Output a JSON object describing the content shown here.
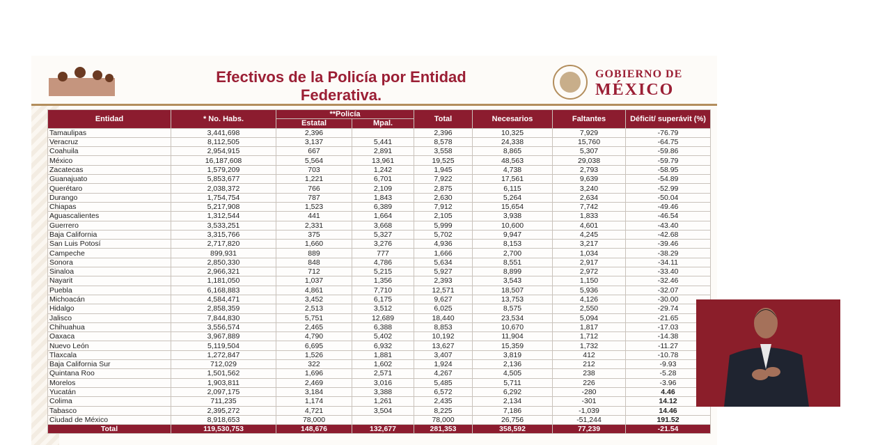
{
  "header": {
    "title": "Efectivos de la Policía por Entidad Federativa.",
    "logo": [
      "GOBIERNO DE",
      "MÉXICO"
    ]
  },
  "table": {
    "columns": [
      "Entidad",
      "* No. Habs.",
      "**Policía",
      "Total",
      "Necesarios",
      "Faltantes",
      "Déficit/ superávit (%)"
    ],
    "subcolumns": [
      "Estatal",
      "Mpal."
    ],
    "rows": [
      [
        "Tamaulipas",
        "3,441,698",
        "2,396",
        null,
        "2,396",
        "10,325",
        "7,929",
        "-76.79"
      ],
      [
        "Veracruz",
        "8,112,505",
        "3,137",
        "5,441",
        "8,578",
        "24,338",
        "15,760",
        "-64.75"
      ],
      [
        "Coahuila",
        "2,954,915",
        "667",
        "2,891",
        "3,558",
        "8,865",
        "5,307",
        "-59.86"
      ],
      [
        "México",
        "16,187,608",
        "5,564",
        "13,961",
        "19,525",
        "48,563",
        "29,038",
        "-59.79"
      ],
      [
        "Zacatecas",
        "1,579,209",
        "703",
        "1,242",
        "1,945",
        "4,738",
        "2,793",
        "-58.95"
      ],
      [
        "Guanajuato",
        "5,853,677",
        "1,221",
        "6,701",
        "7,922",
        "17,561",
        "9,639",
        "-54.89"
      ],
      [
        "Querétaro",
        "2,038,372",
        "766",
        "2,109",
        "2,875",
        "6,115",
        "3,240",
        "-52.99"
      ],
      [
        "Durango",
        "1,754,754",
        "787",
        "1,843",
        "2,630",
        "5,264",
        "2,634",
        "-50.04"
      ],
      [
        "Chiapas",
        "5,217,908",
        "1,523",
        "6,389",
        "7,912",
        "15,654",
        "7,742",
        "-49.46"
      ],
      [
        "Aguascalientes",
        "1,312,544",
        "441",
        "1,664",
        "2,105",
        "3,938",
        "1,833",
        "-46.54"
      ],
      [
        "Guerrero",
        "3,533,251",
        "2,331",
        "3,668",
        "5,999",
        "10,600",
        "4,601",
        "-43.40"
      ],
      [
        "Baja California",
        "3,315,766",
        "375",
        "5,327",
        "5,702",
        "9,947",
        "4,245",
        "-42.68"
      ],
      [
        "San Luis Potosí",
        "2,717,820",
        "1,660",
        "3,276",
        "4,936",
        "8,153",
        "3,217",
        "-39.46"
      ],
      [
        "Campeche",
        "899,931",
        "889",
        "777",
        "1,666",
        "2,700",
        "1,034",
        "-38.29"
      ],
      [
        "Sonora",
        "2,850,330",
        "848",
        "4,786",
        "5,634",
        "8,551",
        "2,917",
        "-34.11"
      ],
      [
        "Sinaloa",
        "2,966,321",
        "712",
        "5,215",
        "5,927",
        "8,899",
        "2,972",
        "-33.40"
      ],
      [
        "Nayarit",
        "1,181,050",
        "1,037",
        "1,356",
        "2,393",
        "3,543",
        "1,150",
        "-32.46"
      ],
      [
        "Puebla",
        "6,168,883",
        "4,861",
        "7,710",
        "12,571",
        "18,507",
        "5,936",
        "-32.07"
      ],
      [
        "Michoacán",
        "4,584,471",
        "3,452",
        "6,175",
        "9,627",
        "13,753",
        "4,126",
        "-30.00"
      ],
      [
        "Hidalgo",
        "2,858,359",
        "2,513",
        "3,512",
        "6,025",
        "8,575",
        "2,550",
        "-29.74"
      ],
      [
        "Jalisco",
        "7,844,830",
        "5,751",
        "12,689",
        "18,440",
        "23,534",
        "5,094",
        "-21.65"
      ],
      [
        "Chihuahua",
        "3,556,574",
        "2,465",
        "6,388",
        "8,853",
        "10,670",
        "1,817",
        "-17.03"
      ],
      [
        "Oaxaca",
        "3,967,889",
        "4,790",
        "5,402",
        "10,192",
        "11,904",
        "1,712",
        "-14.38"
      ],
      [
        "Nuevo León",
        "5,119,504",
        "6,695",
        "6,932",
        "13,627",
        "15,359",
        "1,732",
        "-11.27"
      ],
      [
        "Tlaxcala",
        "1,272,847",
        "1,526",
        "1,881",
        "3,407",
        "3,819",
        "412",
        "-10.78"
      ],
      [
        "Baja California Sur",
        "712,029",
        "322",
        "1,602",
        "1,924",
        "2,136",
        "212",
        "-9.93"
      ],
      [
        "Quintana Roo",
        "1,501,562",
        "1,696",
        "2,571",
        "4,267",
        "4,505",
        "238",
        "-5.28"
      ],
      [
        "Morelos",
        "1,903,811",
        "2,469",
        "3,016",
        "5,485",
        "5,711",
        "226",
        "-3.96"
      ],
      [
        "Yucatán",
        "2,097,175",
        "3,184",
        "3,388",
        "6,572",
        "6,292",
        "-280",
        "4.46"
      ],
      [
        "Colima",
        "711,235",
        "1,174",
        "1,261",
        "2,435",
        "2,134",
        "-301",
        "14.12"
      ],
      [
        "Tabasco",
        "2,395,272",
        "4,721",
        "3,504",
        "8,225",
        "7,186",
        "-1,039",
        "14.46"
      ],
      [
        "Ciudad de México",
        "8,918,653",
        "78,000",
        null,
        "78,000",
        "26,756",
        "-51,244",
        "191.52"
      ]
    ],
    "total": [
      "Total",
      "119,530,753",
      "148,676",
      "132,677",
      "281,353",
      "358,592",
      "77,239",
      "-21.54"
    ]
  }
}
